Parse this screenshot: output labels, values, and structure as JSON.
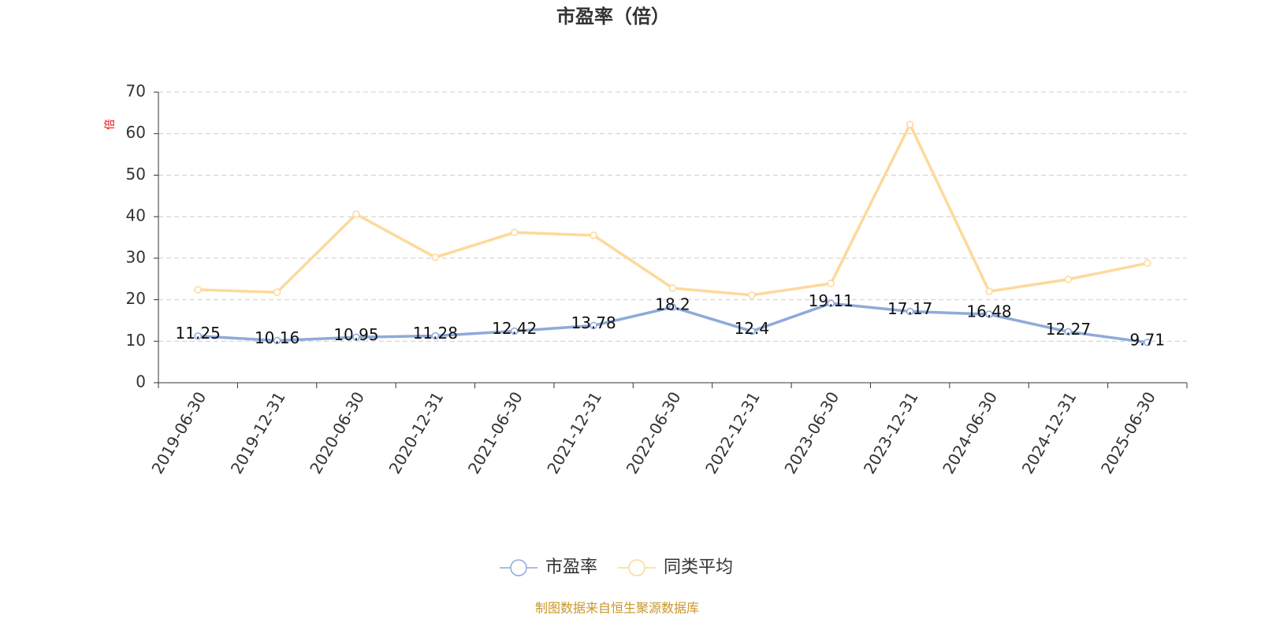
{
  "chart_data": {
    "type": "line",
    "title": "市盈率（倍）",
    "y_label": "倍",
    "categories": [
      "2019-06-30",
      "2019-12-31",
      "2020-06-30",
      "2020-12-31",
      "2021-06-30",
      "2021-12-31",
      "2022-06-30",
      "2022-12-31",
      "2023-06-30",
      "2023-12-31",
      "2024-06-30",
      "2024-12-31",
      "2025-06-30"
    ],
    "series": [
      {
        "name": "市盈率",
        "color": "#8eaad9",
        "values": [
          11.25,
          10.16,
          10.95,
          11.28,
          12.42,
          13.78,
          18.2,
          12.4,
          19.11,
          17.17,
          16.48,
          12.27,
          9.71
        ],
        "show_labels": true
      },
      {
        "name": "同类平均",
        "color": "#fdd99a",
        "values": [
          22.4,
          21.8,
          40.6,
          30.2,
          36.2,
          35.5,
          22.8,
          21.1,
          23.9,
          62.2,
          22.0,
          24.9,
          28.8
        ],
        "show_labels": false
      }
    ],
    "ylim": [
      0,
      70
    ],
    "yticks": [
      0,
      10,
      20,
      30,
      40,
      50,
      60,
      70
    ],
    "grid": true,
    "legend": "bottom",
    "source": "制图数据来自恒生聚源数据库"
  }
}
